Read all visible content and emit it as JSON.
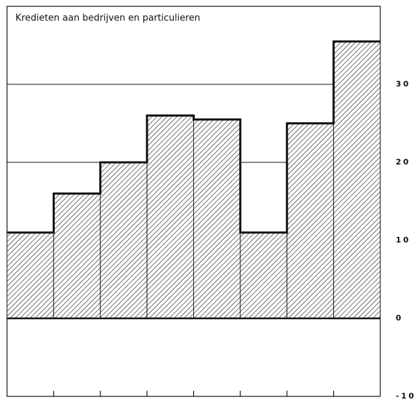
{
  "chart_data": {
    "type": "bar",
    "title": "Kredieten aan bedrijven en particulieren",
    "categories": [
      null,
      null,
      null,
      null,
      null,
      null,
      null,
      null
    ],
    "values": [
      11,
      16,
      20,
      26,
      25.5,
      11,
      25,
      35.5
    ],
    "color": "#222222",
    "ylim": [
      -10,
      40
    ],
    "yticks": [
      -10,
      0,
      10,
      20,
      30
    ],
    "grid": true
  }
}
